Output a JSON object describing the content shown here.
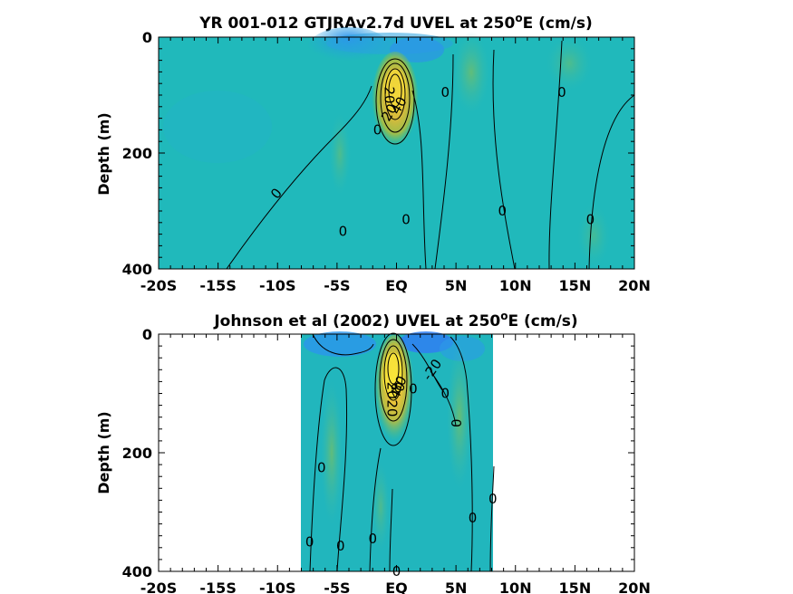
{
  "chart_data": [
    {
      "type": "heatmap",
      "title": "YR 001-012 GTJRAv2.7d UVEL at 250",
      "title_sup": "o",
      "title_suffix": "E (cm/s)",
      "xlabel": "",
      "ylabel": "Depth (m)",
      "xlim": [
        -20,
        20
      ],
      "ylim": [
        0,
        400
      ],
      "y_reversed": true,
      "xticks": [
        -20,
        -15,
        -10,
        -5,
        0,
        5,
        10,
        15,
        20
      ],
      "xtick_labels": [
        "-20S",
        "-15S",
        "-10S",
        "-5S",
        "EQ",
        "5N",
        "10N",
        "15N",
        "20N"
      ],
      "yticks": [
        0,
        200,
        400
      ],
      "ytick_labels": [
        "0",
        "200",
        "400"
      ],
      "data_extent_x": [
        -20,
        20
      ],
      "data_extent_y": [
        0,
        395
      ],
      "colormap": "parula",
      "features": [
        {
          "kind": "jet_core",
          "lat": -0.6,
          "depth": 95,
          "value": 90
        },
        {
          "kind": "surface_westward",
          "lat": -1.5,
          "depth": 10,
          "value": -20
        },
        {
          "kind": "surface_westward",
          "lat": 9,
          "depth": 5,
          "value": -10
        }
      ],
      "contour_labels": [
        {
          "text": "0",
          "lat": -10.1,
          "depth": 270,
          "angle": -50
        },
        {
          "text": "0",
          "lat": -4.5,
          "depth": 335,
          "angle": 0
        },
        {
          "text": "0",
          "lat": -1.6,
          "depth": 160,
          "angle": 0
        },
        {
          "text": "20",
          "lat": -0.6,
          "depth": 130,
          "angle": -60
        },
        {
          "text": "40",
          "lat": 0.2,
          "depth": 118,
          "angle": -60
        },
        {
          "text": "20",
          "lat": -0.6,
          "depth": 100,
          "angle": 90
        },
        {
          "text": "0",
          "lat": 0.8,
          "depth": 315,
          "angle": 0
        },
        {
          "text": "0",
          "lat": 4.1,
          "depth": 95,
          "angle": 0
        },
        {
          "text": "0",
          "lat": 8.9,
          "depth": 300,
          "angle": 0
        },
        {
          "text": "0",
          "lat": 13.9,
          "depth": 95,
          "angle": 0
        },
        {
          "text": "0",
          "lat": 16.3,
          "depth": 315,
          "angle": 0
        }
      ]
    },
    {
      "type": "heatmap",
      "title": "Johnson et al (2002) UVEL at 250",
      "title_sup": "o",
      "title_suffix": "E (cm/s)",
      "xlabel": "",
      "ylabel": "Depth (m)",
      "xlim": [
        -20,
        20
      ],
      "ylim": [
        0,
        400
      ],
      "y_reversed": true,
      "xticks": [
        -20,
        -15,
        -10,
        -5,
        0,
        5,
        10,
        15,
        20
      ],
      "xtick_labels": [
        "-20S",
        "-15S",
        "-10S",
        "-5S",
        "EQ",
        "5N",
        "10N",
        "15N",
        "20N"
      ],
      "yticks": [
        0,
        200,
        400
      ],
      "ytick_labels": [
        "0",
        "200",
        "400"
      ],
      "data_extent_x": [
        -8,
        8.2
      ],
      "data_extent_y": [
        0,
        400
      ],
      "colormap": "parula",
      "features": [
        {
          "kind": "jet_core",
          "lat": -0.3,
          "depth": 65,
          "value": 100
        },
        {
          "kind": "surface_westward",
          "lat": 2.2,
          "depth": 10,
          "value": -20
        },
        {
          "kind": "surface_westward",
          "lat": -4.5,
          "depth": 15,
          "value": -10
        }
      ],
      "contour_labels": [
        {
          "text": "0",
          "lat": -6.3,
          "depth": 225,
          "angle": 0
        },
        {
          "text": "0",
          "lat": -7.3,
          "depth": 350,
          "angle": 0
        },
        {
          "text": "0",
          "lat": -4.7,
          "depth": 357,
          "angle": 0
        },
        {
          "text": "0",
          "lat": -2,
          "depth": 345,
          "angle": 0
        },
        {
          "text": "20",
          "lat": -0.4,
          "depth": 95,
          "angle": 90
        },
        {
          "text": "40",
          "lat": 0.1,
          "depth": 95,
          "angle": -60
        },
        {
          "text": "80",
          "lat": 0.2,
          "depth": 85,
          "angle": -60
        },
        {
          "text": "20",
          "lat": -0.4,
          "depth": 125,
          "angle": 90
        },
        {
          "text": "0",
          "lat": 1.4,
          "depth": 92,
          "angle": 0
        },
        {
          "text": "-20",
          "lat": 3.0,
          "depth": 60,
          "angle": -55
        },
        {
          "text": "0",
          "lat": 4.1,
          "depth": 100,
          "angle": 0
        },
        {
          "text": "0",
          "lat": 5.0,
          "depth": 150,
          "angle": 90
        },
        {
          "text": "0",
          "lat": 6.4,
          "depth": 310,
          "angle": 0
        },
        {
          "text": "0",
          "lat": 8.1,
          "depth": 278,
          "angle": 0
        },
        {
          "text": "0",
          "lat": 0,
          "depth": 400,
          "angle": 0
        }
      ]
    }
  ]
}
